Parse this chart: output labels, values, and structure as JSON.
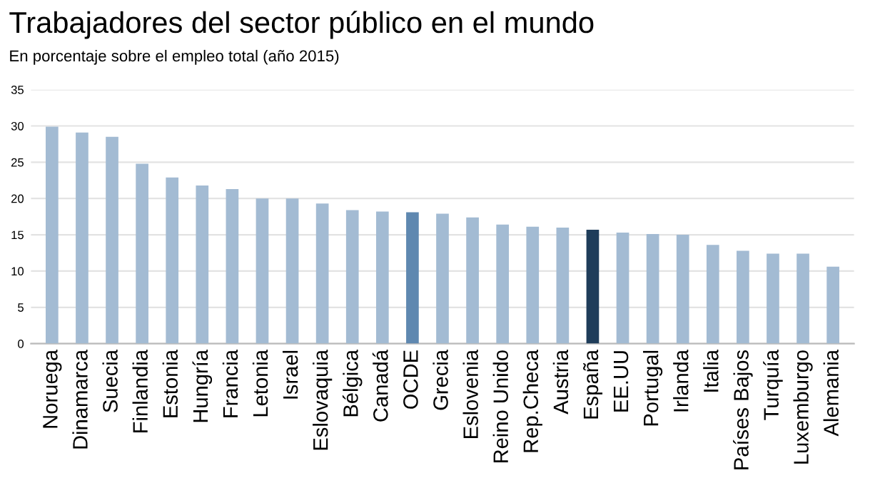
{
  "chart_data": {
    "type": "bar",
    "title": "Trabajadores del sector público en el mundo",
    "subtitle": "En porcentaje sobre el empleo total (año 2015)",
    "categories": [
      "Noruega",
      "Dinamarca",
      "Suecia",
      "Finlandia",
      "Estonia",
      "Hungría",
      "Francia",
      "Letonia",
      "Israel",
      "Eslovaquia",
      "Bélgica",
      "Canadá",
      "OCDE",
      "Grecia",
      "Eslovenia",
      "Reino Unido",
      "Rep.Checa",
      "Austria",
      "España",
      "EE.UU",
      "Portugal",
      "Irlanda",
      "Italia",
      "Países Bajos",
      "Turquía",
      "Luxemburgo",
      "Alemania"
    ],
    "values": [
      29.9,
      29.1,
      28.5,
      24.8,
      22.9,
      21.8,
      21.3,
      20.0,
      20.0,
      19.3,
      18.4,
      18.2,
      18.1,
      17.9,
      17.4,
      16.4,
      16.1,
      16.0,
      15.7,
      15.3,
      15.1,
      15.0,
      13.6,
      12.8,
      12.4,
      12.4,
      10.6
    ],
    "colors": [
      "#a3bbd3",
      "#a3bbd3",
      "#a3bbd3",
      "#a3bbd3",
      "#a3bbd3",
      "#a3bbd3",
      "#a3bbd3",
      "#a3bbd3",
      "#a3bbd3",
      "#a3bbd3",
      "#a3bbd3",
      "#a3bbd3",
      "#5f88b0",
      "#a3bbd3",
      "#a3bbd3",
      "#a3bbd3",
      "#a3bbd3",
      "#a3bbd3",
      "#1f3d5a",
      "#a3bbd3",
      "#a3bbd3",
      "#a3bbd3",
      "#a3bbd3",
      "#a3bbd3",
      "#a3bbd3",
      "#a3bbd3",
      "#a3bbd3"
    ],
    "ylim": [
      0,
      35
    ],
    "yticks": [
      0,
      5,
      10,
      15,
      20,
      25,
      30,
      35
    ],
    "grid": "y"
  }
}
